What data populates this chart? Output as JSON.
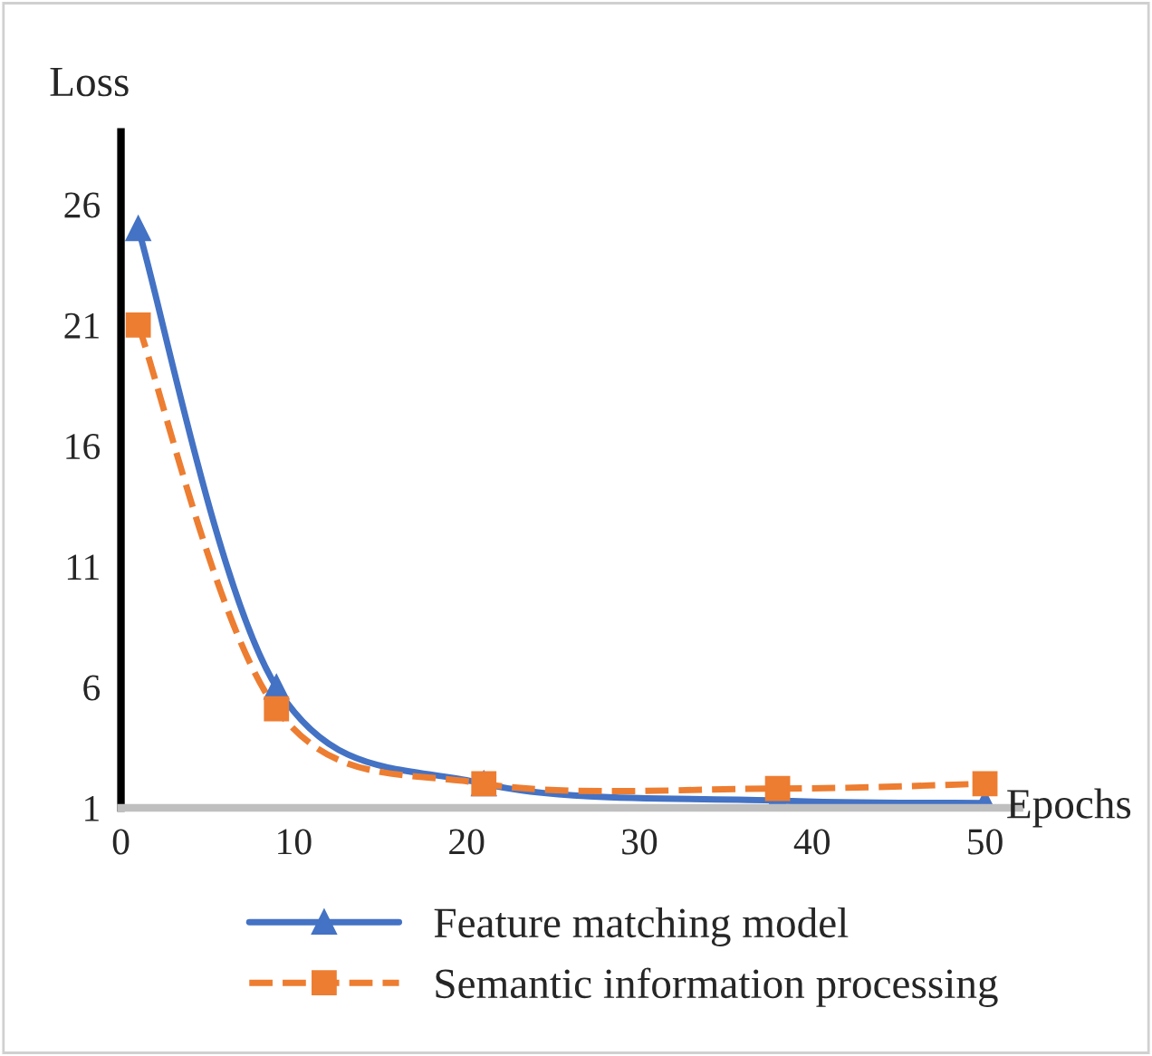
{
  "chart_data": {
    "type": "line",
    "xlabel": "Epochs",
    "ylabel": "Loss",
    "xlim": [
      0,
      52
    ],
    "xticks": [
      0,
      10,
      20,
      30,
      40,
      50
    ],
    "ylim": [
      1,
      29
    ],
    "yticks": [
      1,
      6,
      11,
      16,
      21,
      26
    ],
    "x": [
      1,
      9,
      21,
      38,
      50
    ],
    "series": [
      {
        "name": "Feature matching model",
        "color": "#4472c4",
        "values": [
          25,
          6,
          2,
          1.3,
          1.2
        ],
        "marker": "triangle",
        "line_style": "solid"
      },
      {
        "name": "Semantic information processing",
        "color": "#ed7d31",
        "values": [
          21,
          5.1,
          2,
          1.8,
          2
        ],
        "marker": "square",
        "line_style": "dashed"
      }
    ],
    "grid": false,
    "legend": "bottom"
  }
}
